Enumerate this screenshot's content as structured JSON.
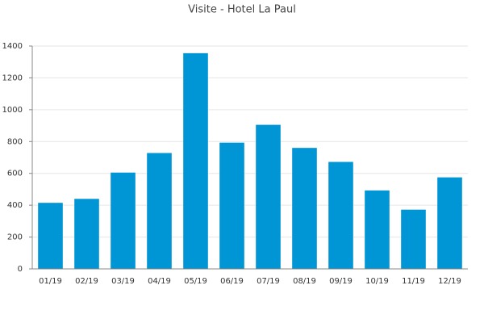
{
  "chart_data": {
    "type": "bar",
    "title": "Visite - Hotel La Paul",
    "categories": [
      "01/19",
      "02/19",
      "03/19",
      "04/19",
      "05/19",
      "06/19",
      "07/19",
      "08/19",
      "09/19",
      "10/19",
      "11/19",
      "12/19"
    ],
    "values": [
      415,
      440,
      605,
      728,
      1355,
      793,
      905,
      760,
      672,
      493,
      372,
      575
    ],
    "color": "#0095d5",
    "ylim": [
      0,
      1400
    ],
    "yticks": [
      0,
      200,
      400,
      600,
      800,
      1000,
      1200,
      1400
    ],
    "grid": true
  }
}
